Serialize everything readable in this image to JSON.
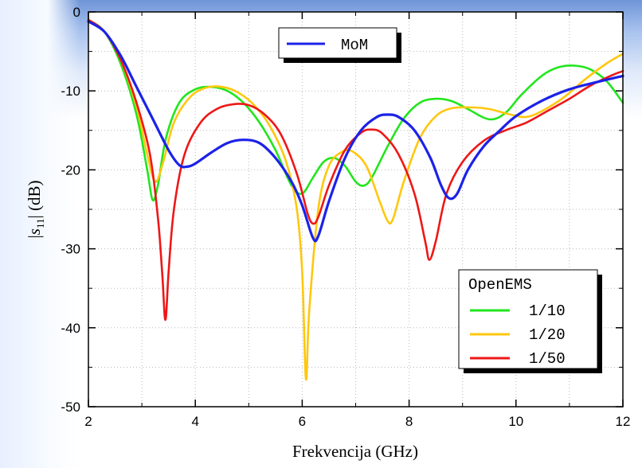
{
  "chart_data": {
    "type": "line",
    "xlabel": "Frekvencija (GHz)",
    "ylabel_parts": [
      "|",
      "s",
      "11",
      "| (dB)"
    ],
    "xlim": [
      2,
      12
    ],
    "ylim": [
      -50,
      0
    ],
    "xticks": [
      "2",
      "4",
      "6",
      "8",
      "10",
      "12"
    ],
    "yticks": [
      "0",
      "-10",
      "-20",
      "-30",
      "-40",
      "-50"
    ],
    "grid": true,
    "legend_top": {
      "placement": "top-center",
      "entries": [
        "MoM"
      ]
    },
    "legend_bottom": {
      "placement": "bottom-right",
      "title": "OpenEMS",
      "entries": [
        "1/10",
        "1/20",
        "1/50"
      ]
    },
    "series": [
      {
        "name": "MoM",
        "color": "#1c22e8",
        "points": [
          [
            2,
            -1.2
          ],
          [
            2.3,
            -2.5
          ],
          [
            2.6,
            -5.5
          ],
          [
            2.9,
            -9.5
          ],
          [
            3.2,
            -13.5
          ],
          [
            3.5,
            -17.5
          ],
          [
            3.7,
            -19.4
          ],
          [
            3.85,
            -19.6
          ],
          [
            4.0,
            -19.2
          ],
          [
            4.3,
            -17.8
          ],
          [
            4.6,
            -16.6
          ],
          [
            4.9,
            -16.2
          ],
          [
            5.2,
            -16.6
          ],
          [
            5.5,
            -18.5
          ],
          [
            5.8,
            -21.5
          ],
          [
            6.0,
            -24.5
          ],
          [
            6.2,
            -28.6
          ],
          [
            6.3,
            -28.4
          ],
          [
            6.5,
            -24
          ],
          [
            6.8,
            -18.5
          ],
          [
            7.1,
            -15
          ],
          [
            7.4,
            -13.3
          ],
          [
            7.6,
            -13.0
          ],
          [
            7.8,
            -13.3
          ],
          [
            8.1,
            -15.0
          ],
          [
            8.4,
            -18.5
          ],
          [
            8.6,
            -22
          ],
          [
            8.75,
            -23.6
          ],
          [
            8.9,
            -23.0
          ],
          [
            9.1,
            -20
          ],
          [
            9.4,
            -17
          ],
          [
            9.7,
            -15
          ],
          [
            10.0,
            -13.2
          ],
          [
            10.5,
            -11.2
          ],
          [
            11.0,
            -9.8
          ],
          [
            11.5,
            -8.9
          ],
          [
            12.0,
            -8.1
          ]
        ]
      },
      {
        "name": "1/10",
        "color": "#22e61c",
        "points": [
          [
            2,
            -1.0
          ],
          [
            2.3,
            -2.5
          ],
          [
            2.6,
            -6.5
          ],
          [
            2.9,
            -13
          ],
          [
            3.1,
            -20
          ],
          [
            3.2,
            -23.8
          ],
          [
            3.3,
            -22
          ],
          [
            3.45,
            -16
          ],
          [
            3.7,
            -11.5
          ],
          [
            4.0,
            -9.8
          ],
          [
            4.3,
            -9.5
          ],
          [
            4.6,
            -10.0
          ],
          [
            4.9,
            -11.5
          ],
          [
            5.2,
            -14
          ],
          [
            5.5,
            -17.5
          ],
          [
            5.8,
            -22
          ],
          [
            6.0,
            -23.0
          ],
          [
            6.2,
            -21
          ],
          [
            6.4,
            -19
          ],
          [
            6.6,
            -18.5
          ],
          [
            6.8,
            -19.5
          ],
          [
            7.0,
            -21.5
          ],
          [
            7.15,
            -22.0
          ],
          [
            7.3,
            -21
          ],
          [
            7.6,
            -17
          ],
          [
            7.9,
            -13.5
          ],
          [
            8.2,
            -11.5
          ],
          [
            8.5,
            -11.0
          ],
          [
            8.8,
            -11.3
          ],
          [
            9.1,
            -12.3
          ],
          [
            9.5,
            -13.6
          ],
          [
            9.8,
            -12.8
          ],
          [
            10.1,
            -10.5
          ],
          [
            10.5,
            -8
          ],
          [
            10.8,
            -7.0
          ],
          [
            11.1,
            -6.8
          ],
          [
            11.4,
            -7.3
          ],
          [
            11.7,
            -8.8
          ],
          [
            12.0,
            -11.5
          ]
        ]
      },
      {
        "name": "1/20",
        "color": "#ffc70e",
        "points": [
          [
            2,
            -1.0
          ],
          [
            2.3,
            -2.5
          ],
          [
            2.6,
            -6
          ],
          [
            2.9,
            -12
          ],
          [
            3.1,
            -18
          ],
          [
            3.25,
            -21.5
          ],
          [
            3.4,
            -19
          ],
          [
            3.6,
            -14
          ],
          [
            3.9,
            -10.8
          ],
          [
            4.2,
            -9.6
          ],
          [
            4.5,
            -9.5
          ],
          [
            4.8,
            -10.2
          ],
          [
            5.1,
            -11.8
          ],
          [
            5.4,
            -14.5
          ],
          [
            5.7,
            -19
          ],
          [
            5.9,
            -25
          ],
          [
            6.0,
            -33
          ],
          [
            6.07,
            -46.5
          ],
          [
            6.13,
            -38
          ],
          [
            6.3,
            -25
          ],
          [
            6.5,
            -19.5
          ],
          [
            6.75,
            -17.7
          ],
          [
            6.95,
            -17.7
          ],
          [
            7.2,
            -19.5
          ],
          [
            7.45,
            -24
          ],
          [
            7.6,
            -26.5
          ],
          [
            7.7,
            -26.2
          ],
          [
            7.9,
            -21.5
          ],
          [
            8.2,
            -16
          ],
          [
            8.5,
            -13.2
          ],
          [
            8.8,
            -12.2
          ],
          [
            9.2,
            -12.1
          ],
          [
            9.5,
            -12.3
          ],
          [
            9.9,
            -13.0
          ],
          [
            10.2,
            -13.3
          ],
          [
            10.5,
            -12.5
          ],
          [
            10.9,
            -10.8
          ],
          [
            11.3,
            -8.5
          ],
          [
            11.7,
            -6.5
          ],
          [
            12.0,
            -5.3
          ]
        ]
      },
      {
        "name": "1/50",
        "color": "#ee1717",
        "points": [
          [
            2,
            -1.0
          ],
          [
            2.3,
            -2.5
          ],
          [
            2.6,
            -6
          ],
          [
            2.9,
            -11.5
          ],
          [
            3.15,
            -18
          ],
          [
            3.3,
            -26
          ],
          [
            3.38,
            -33
          ],
          [
            3.44,
            -39
          ],
          [
            3.5,
            -33
          ],
          [
            3.6,
            -25
          ],
          [
            3.8,
            -18
          ],
          [
            4.1,
            -14
          ],
          [
            4.4,
            -12.3
          ],
          [
            4.7,
            -11.7
          ],
          [
            5.0,
            -11.8
          ],
          [
            5.3,
            -13
          ],
          [
            5.6,
            -15.5
          ],
          [
            5.9,
            -20.5
          ],
          [
            6.1,
            -25.5
          ],
          [
            6.2,
            -26.8
          ],
          [
            6.3,
            -26
          ],
          [
            6.5,
            -22
          ],
          [
            6.8,
            -17.5
          ],
          [
            7.1,
            -15.3
          ],
          [
            7.3,
            -14.9
          ],
          [
            7.5,
            -15.4
          ],
          [
            7.8,
            -18
          ],
          [
            8.1,
            -23
          ],
          [
            8.3,
            -29
          ],
          [
            8.38,
            -31.4
          ],
          [
            8.5,
            -29
          ],
          [
            8.7,
            -23
          ],
          [
            9.0,
            -19
          ],
          [
            9.4,
            -16.3
          ],
          [
            9.8,
            -15
          ],
          [
            10.2,
            -14
          ],
          [
            10.6,
            -12.5
          ],
          [
            11.0,
            -11
          ],
          [
            11.4,
            -9.3
          ],
          [
            11.8,
            -8
          ],
          [
            12.0,
            -7.5
          ]
        ]
      }
    ]
  }
}
